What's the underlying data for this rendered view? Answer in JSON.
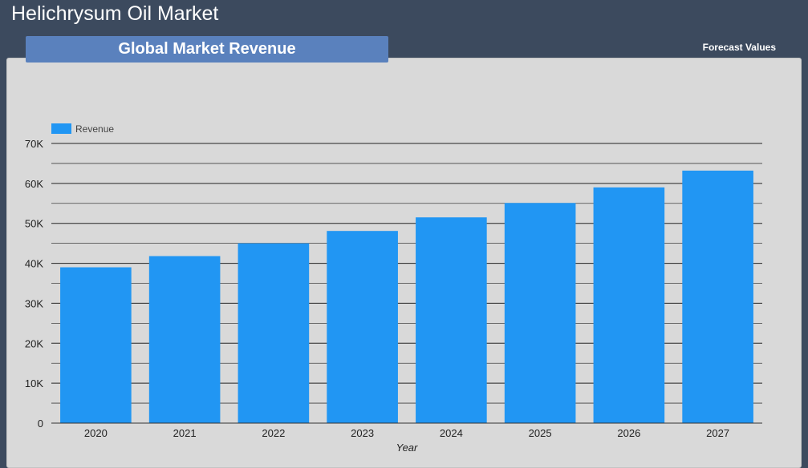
{
  "header": {
    "title": "Helichrysum Oil Market",
    "section_tab": "Global Market Revenue",
    "forecast_label": "Forecast Values"
  },
  "chart_data": {
    "type": "bar",
    "categories": [
      "2020",
      "2021",
      "2022",
      "2023",
      "2024",
      "2025",
      "2026",
      "2027"
    ],
    "series": [
      {
        "name": "Revenue",
        "values": [
          39000,
          41800,
          45000,
          48100,
          51500,
          55100,
          59000,
          63200
        ]
      }
    ],
    "xlabel": "Year",
    "ylabel": "",
    "ylim": [
      0,
      70000
    ],
    "yticks": [
      0,
      10000,
      20000,
      30000,
      40000,
      50000,
      60000,
      70000
    ],
    "ytick_labels": [
      "0",
      "10K",
      "20K",
      "30K",
      "40K",
      "50K",
      "60K",
      "70K"
    ],
    "grid": true,
    "legend": "top-left",
    "colors": {
      "bar": "#2196f3",
      "grid": "#1a1a1a"
    }
  }
}
